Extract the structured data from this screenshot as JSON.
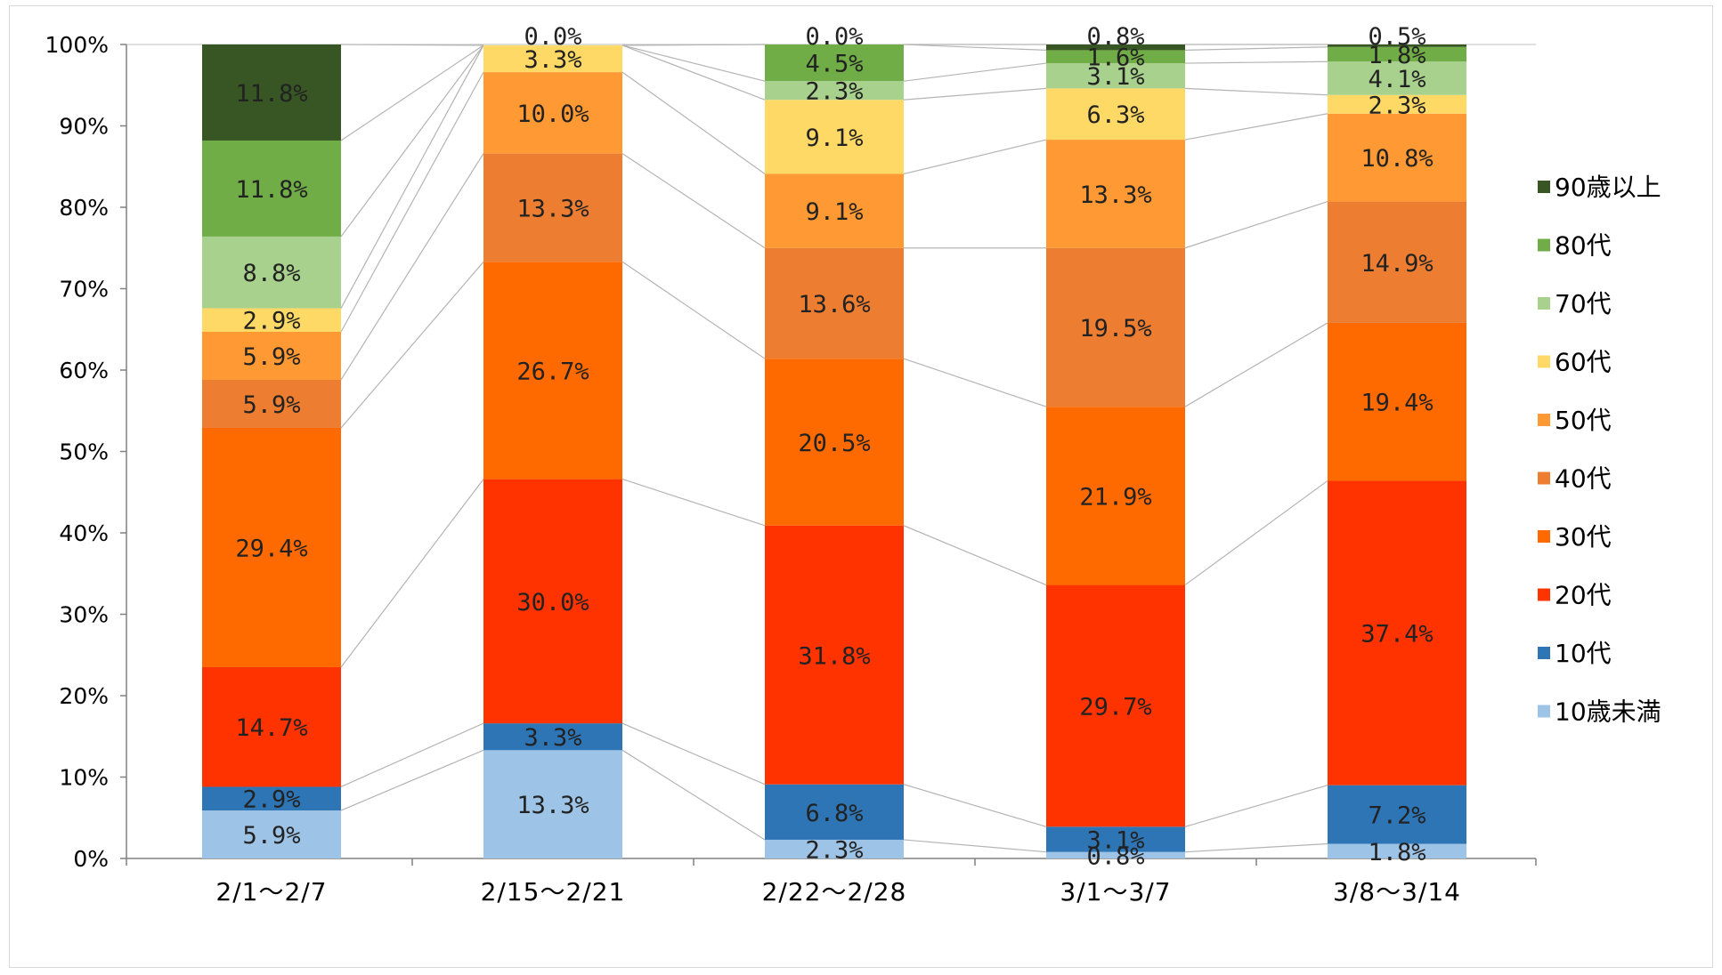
{
  "chart_data": {
    "type": "bar",
    "stacked": true,
    "categories": [
      "2/1～2/7",
      "2/15～2/21",
      "2/22～2/28",
      "3/1～3/7",
      "3/8～3/14"
    ],
    "ylim": [
      0,
      100
    ],
    "yticks": [
      "0%",
      "10%",
      "20%",
      "30%",
      "40%",
      "50%",
      "60%",
      "70%",
      "80%",
      "90%",
      "100%"
    ],
    "legend_position": "right",
    "series": [
      {
        "name": "10歳未満",
        "color": "#9dc3e6",
        "values": [
          5.9,
          13.3,
          2.3,
          0.8,
          1.8
        ],
        "labels": [
          "5.9%",
          "13.3%",
          "2.3%",
          "0.8%",
          "1.8%"
        ]
      },
      {
        "name": "10代",
        "color": "#2e75b6",
        "values": [
          2.9,
          3.3,
          6.8,
          3.1,
          7.2
        ],
        "labels": [
          "2.9%",
          "3.3%",
          "6.8%",
          "3.1%",
          "7.2%"
        ]
      },
      {
        "name": "20代",
        "color": "#ff3300",
        "values": [
          14.7,
          30.0,
          31.8,
          29.7,
          37.4
        ],
        "labels": [
          "14.7%",
          "30.0%",
          "31.8%",
          "29.7%",
          "37.4%"
        ]
      },
      {
        "name": "30代",
        "color": "#ff6a00",
        "values": [
          29.4,
          26.7,
          20.5,
          21.9,
          19.4
        ],
        "labels": [
          "29.4%",
          "26.7%",
          "20.5%",
          "21.9%",
          "19.4%"
        ]
      },
      {
        "name": "40代",
        "color": "#ed7d31",
        "values": [
          5.9,
          13.3,
          13.6,
          19.5,
          14.9
        ],
        "labels": [
          "5.9%",
          "13.3%",
          "13.6%",
          "19.5%",
          "14.9%"
        ]
      },
      {
        "name": "50代",
        "color": "#ff9933",
        "values": [
          5.9,
          10.0,
          9.1,
          13.3,
          10.8
        ],
        "labels": [
          "5.9%",
          "10.0%",
          "9.1%",
          "13.3%",
          "10.8%"
        ]
      },
      {
        "name": "60代",
        "color": "#ffd966",
        "values": [
          2.9,
          3.3,
          9.1,
          6.3,
          2.3
        ],
        "labels": [
          "2.9%",
          "3.3%",
          "9.1%",
          "6.3%",
          "2.3%"
        ]
      },
      {
        "name": "70代",
        "color": "#a9d18e",
        "values": [
          8.8,
          0.0,
          2.3,
          3.1,
          4.1
        ],
        "labels": [
          "8.8%",
          "",
          "2.3%",
          "3.1%",
          "4.1%"
        ]
      },
      {
        "name": "80代",
        "color": "#70ad47",
        "values": [
          11.8,
          0.0,
          4.5,
          1.6,
          1.8
        ],
        "labels": [
          "11.8%",
          "",
          "4.5%",
          "1.6%",
          "1.8%"
        ]
      },
      {
        "name": "90歳以上",
        "color": "#375623",
        "values": [
          11.8,
          0.0,
          0.0,
          0.8,
          0.5
        ],
        "labels": [
          "11.8%",
          "0.0%",
          "0.0%",
          "0.8%",
          "0.5%"
        ]
      }
    ]
  }
}
